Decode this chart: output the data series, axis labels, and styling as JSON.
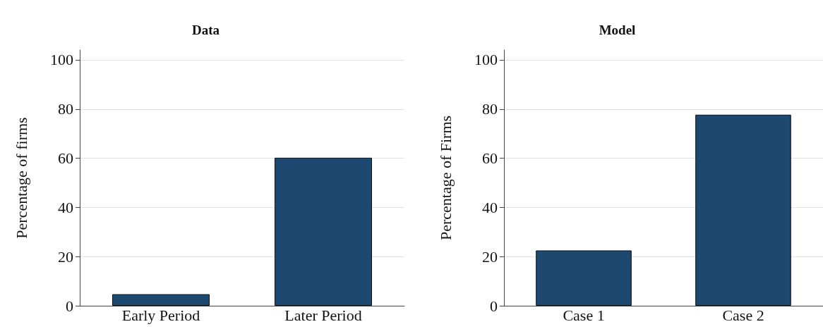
{
  "chart_data": [
    {
      "type": "bar",
      "title": "Data",
      "ylabel": "Percentage of firms",
      "categories": [
        "Early Period",
        "Later Period"
      ],
      "values": [
        4.7,
        60.2
      ],
      "color": "#1d4870",
      "ylim": [
        0,
        104
      ],
      "yticks": [
        0,
        20,
        40,
        60,
        80,
        100
      ],
      "grid": "y"
    },
    {
      "type": "bar",
      "title": "Model",
      "ylabel": "Percentage of Firms",
      "categories": [
        "Case 1",
        "Case 2"
      ],
      "values": [
        22.5,
        77.7
      ],
      "color": "#1d4870",
      "ylim": [
        0,
        104
      ],
      "yticks": [
        0,
        20,
        40,
        60,
        80,
        100
      ],
      "grid": "y"
    }
  ]
}
